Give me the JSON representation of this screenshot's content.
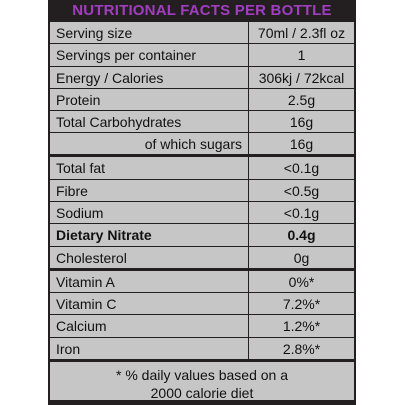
{
  "header": {
    "title": "NUTRITIONAL FACTS PER BOTTLE"
  },
  "rows": [
    {
      "label": "Serving size",
      "value": "70ml / 2.3fl oz"
    },
    {
      "label": "Servings per container",
      "value": "1"
    },
    {
      "label": "Energy / Calories",
      "value": "306kj / 72kcal"
    },
    {
      "label": "Protein",
      "value": "2.5g"
    },
    {
      "label": "Total Carbohydrates",
      "value": "16g"
    },
    {
      "label": "of which sugars",
      "value": "16g"
    },
    {
      "label": "Total fat",
      "value": "<0.1g"
    },
    {
      "label": "Fibre",
      "value": "<0.5g"
    },
    {
      "label": "Sodium",
      "value": "<0.1g"
    },
    {
      "label": "Dietary Nitrate",
      "value": "0.4g"
    },
    {
      "label": "Cholesterol",
      "value": "0g"
    },
    {
      "label": "Vitamin A",
      "value": "0%*"
    },
    {
      "label": "Vitamin C",
      "value": "7.2%*"
    },
    {
      "label": "Calcium",
      "value": "1.2%*"
    },
    {
      "label": "Iron",
      "value": "2.8%*"
    }
  ],
  "footnote": {
    "line1": "* % daily values based on a",
    "line2": "2000 calorie diet"
  }
}
